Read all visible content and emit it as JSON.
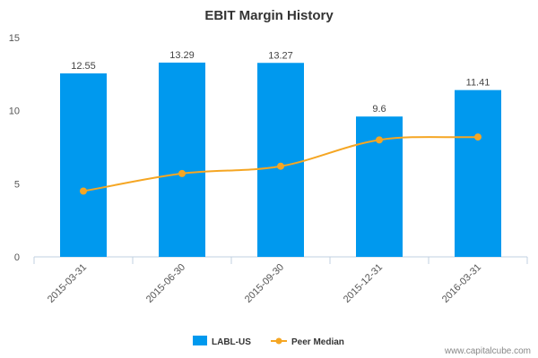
{
  "chart_data": {
    "type": "bar",
    "title": "EBIT Margin History",
    "categories": [
      "2015-03-31",
      "2015-06-30",
      "2015-09-30",
      "2015-12-31",
      "2016-03-31"
    ],
    "series": [
      {
        "name": "LABL-US",
        "type": "bar",
        "values": [
          12.55,
          13.29,
          13.27,
          9.6,
          11.41
        ],
        "data_labels": [
          "12.55",
          "13.29",
          "13.27",
          "9.6",
          "11.41"
        ],
        "color": "#0099ee"
      },
      {
        "name": "Peer Median",
        "type": "line",
        "values": [
          4.5,
          5.7,
          6.2,
          8.0,
          8.2
        ],
        "color": "#f5a623"
      }
    ],
    "ylim": [
      0,
      15
    ],
    "yticks": [
      "0",
      "5",
      "10",
      "15"
    ],
    "xlabel": "",
    "ylabel": "",
    "grid": false,
    "legend_position": "bottom-center"
  },
  "watermark": "www.capitalcube.com"
}
